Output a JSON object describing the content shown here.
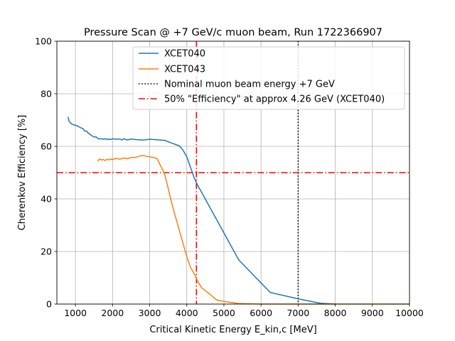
{
  "chart_data": {
    "type": "line",
    "title": "Pressure Scan @ +7 GeV/c muon beam, Run 1722366907",
    "xlabel": "Critical Kinetic Energy E_kin,c [MeV]",
    "ylabel": "Cherenkov Efficiency [%]",
    "xlim": [
      500,
      10000
    ],
    "ylim": [
      0,
      100
    ],
    "x_ticks": [
      1000,
      2000,
      3000,
      4000,
      5000,
      6000,
      7000,
      8000,
      9000,
      10000
    ],
    "y_ticks": [
      0,
      20,
      40,
      60,
      80,
      100
    ],
    "grid": true,
    "legend_position": "top-right",
    "series": [
      {
        "name": "XCET040",
        "color": "#1f77b4",
        "x": [
          800,
          830,
          860,
          900,
          950,
          1000,
          1050,
          1100,
          1150,
          1200,
          1250,
          1300,
          1350,
          1400,
          1450,
          1500,
          1550,
          1600,
          1650,
          1700,
          1750,
          1800,
          1850,
          1900,
          1950,
          2000,
          2100,
          2200,
          2250,
          2300,
          2350,
          2400,
          2500,
          2600,
          2700,
          2800,
          2900,
          3000,
          3100,
          3200,
          3300,
          3400,
          3600,
          3800,
          3900,
          4000,
          4100,
          4200,
          4300,
          4400,
          5400,
          6250,
          7000,
          7600,
          8000
        ],
        "y": [
          71.2,
          69.5,
          69.0,
          68.5,
          68.2,
          68.0,
          67.8,
          67.4,
          67.0,
          66.8,
          65.8,
          65.8,
          65.0,
          64.5,
          64.0,
          63.5,
          63.7,
          63.0,
          62.8,
          62.9,
          62.7,
          62.9,
          62.6,
          62.8,
          62.6,
          62.9,
          62.7,
          62.8,
          62.4,
          62.9,
          62.7,
          62.4,
          62.8,
          62.6,
          62.5,
          62.4,
          62.5,
          62.7,
          62.6,
          62.5,
          62.4,
          62.3,
          61.2,
          60.2,
          58.5,
          56.0,
          52.0,
          48.0,
          45.0,
          42.5,
          16.8,
          4.4,
          2.0,
          0.3,
          0.0
        ]
      },
      {
        "name": "XCET043",
        "color": "#ff7f0e",
        "x": [
          1600,
          1650,
          1700,
          1750,
          1800,
          1850,
          1900,
          1950,
          2000,
          2100,
          2200,
          2300,
          2400,
          2500,
          2600,
          2700,
          2800,
          2900,
          3000,
          3100,
          3200,
          3300,
          3400,
          3500,
          3600,
          3700,
          3800,
          3900,
          4000,
          4100,
          4200,
          4300,
          4400,
          4600,
          4800,
          5000,
          5400,
          6000,
          7000,
          8000,
          9000,
          10000
        ],
        "y": [
          54.3,
          55.2,
          54.8,
          55.0,
          54.6,
          55.1,
          54.8,
          55.2,
          55.0,
          55.4,
          55.1,
          55.6,
          55.3,
          55.8,
          55.7,
          56.2,
          56.5,
          56.3,
          56.0,
          55.8,
          55.3,
          52.5,
          49.5,
          44.0,
          38.0,
          33.0,
          28.0,
          23.0,
          18.0,
          14.0,
          11.5,
          8.5,
          6.2,
          4.0,
          1.6,
          1.0,
          0.2,
          0.0,
          0.0,
          0.0,
          0.0,
          0.0
        ]
      }
    ],
    "reference_lines": [
      {
        "name": "Nominal muon beam energy +7 GeV",
        "orientation": "vertical",
        "value": 7000,
        "color": "#000000",
        "style": "dotted"
      },
      {
        "name": "50% \"Efficiency\" at approx 4.26 GeV (XCET040)",
        "orientation": "horizontal",
        "value": 50,
        "color": "#ff0000",
        "style": "dashdot"
      },
      {
        "name": "",
        "orientation": "vertical",
        "value": 4260,
        "color": "#ff0000",
        "style": "dashdot"
      }
    ]
  }
}
